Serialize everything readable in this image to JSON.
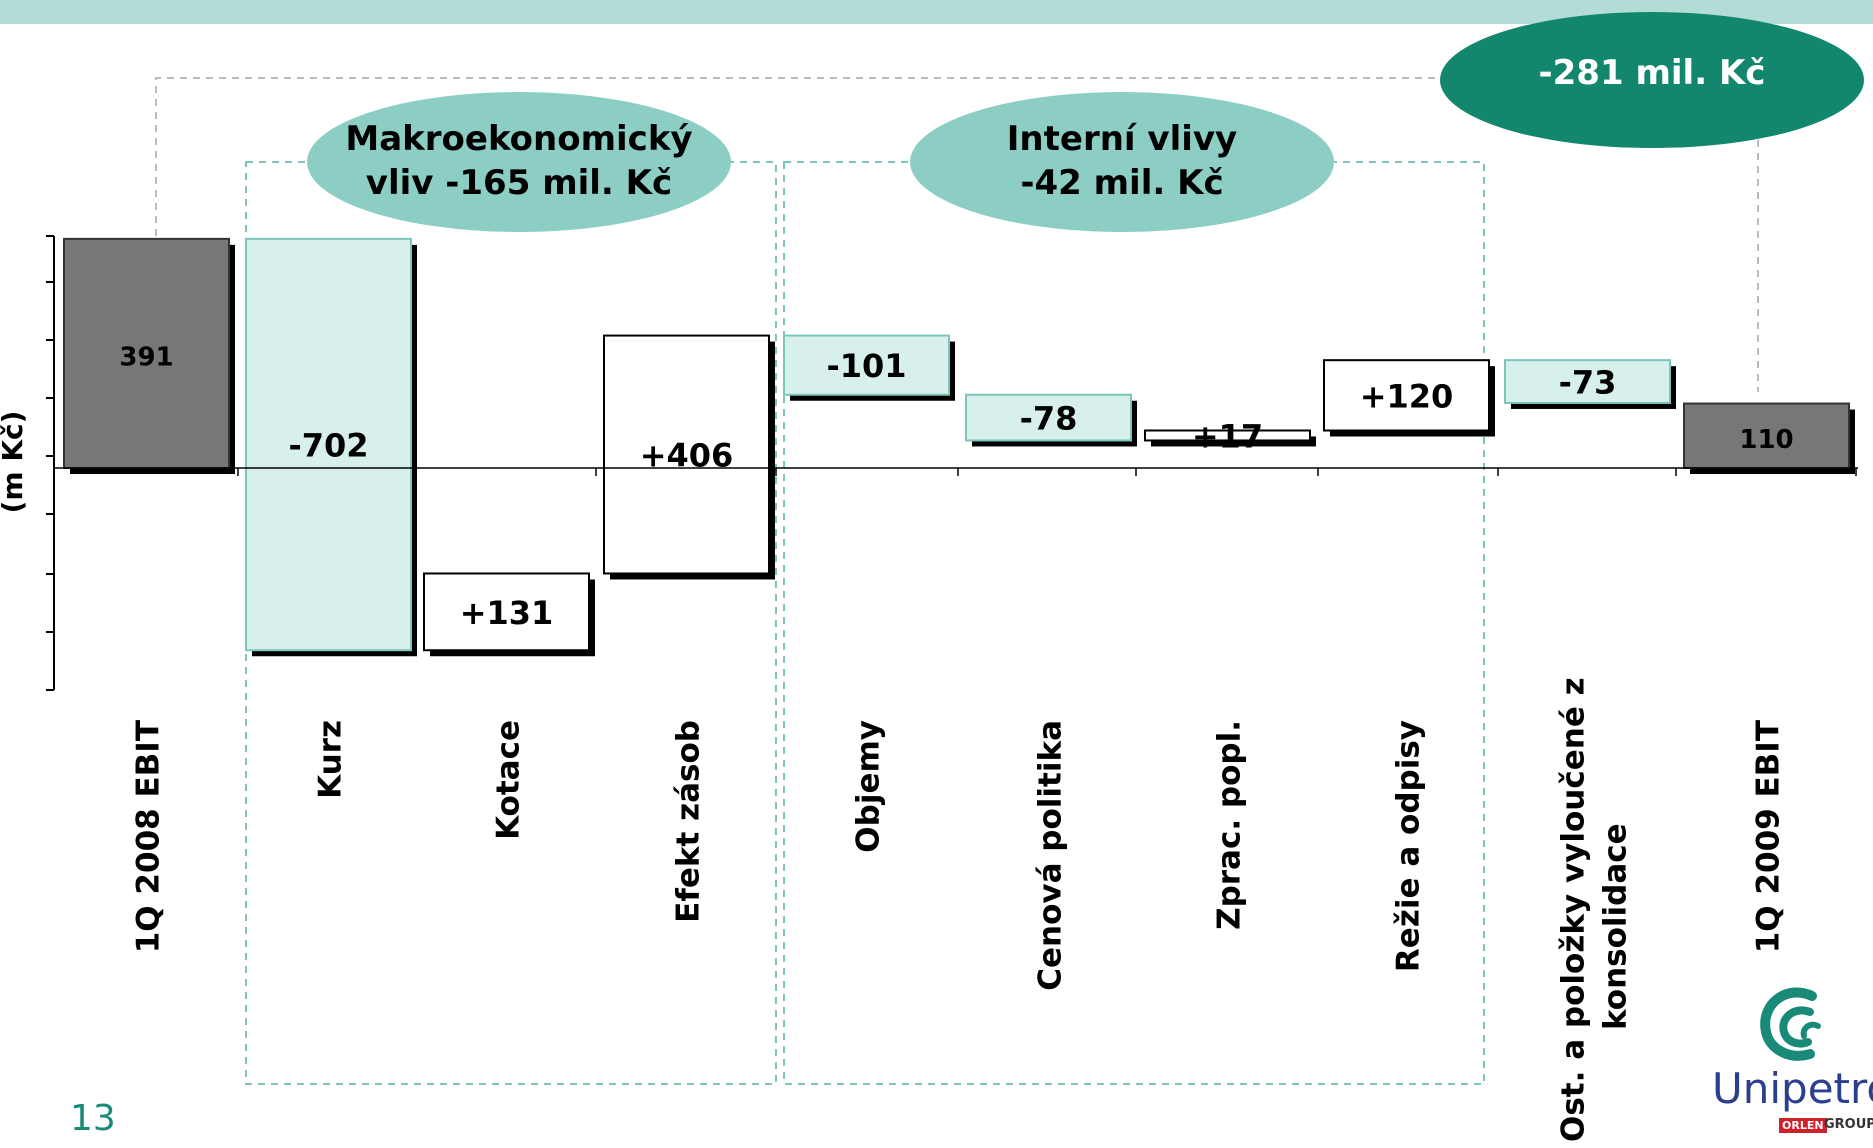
{
  "chart_data": {
    "type": "bar",
    "subtype": "waterfall",
    "ylabel": "(m Kč)",
    "categories": [
      "1Q 2008 EBIT",
      "Kurz",
      "Kotace",
      "Efekt zásob",
      "Objemy",
      "Cenová politika",
      "Zprac. popl.",
      "Režie a odpisy",
      "Ost. a položky vyloučené z konsolidace",
      "1Q 2009 EBIT"
    ],
    "values": [
      391,
      -702,
      131,
      406,
      -101,
      -78,
      17,
      120,
      -73,
      110
    ],
    "value_labels": [
      "391",
      "-702",
      "+131",
      "+406",
      "-101",
      "-78",
      "+17",
      "+120",
      "-73",
      "110"
    ],
    "kinds": [
      "total",
      "delta",
      "delta",
      "delta",
      "delta",
      "delta",
      "delta",
      "delta",
      "delta",
      "total"
    ],
    "groups": [
      {
        "label_line1": "Makroekonomický",
        "label_line2": "vliv -165 mil. Kč",
        "categories": [
          "Kurz",
          "Kotace",
          "Efekt zásob"
        ]
      },
      {
        "label_line1": "Interní vlivy",
        "label_line2": "-42 mil. Kč",
        "categories": [
          "Objemy",
          "Cenová politika",
          "Zprac. popl.",
          "Režie a odpisy"
        ]
      }
    ],
    "total_change": "-281 mil. Kč",
    "colors": {
      "total": "#777777",
      "negative": "#d8f0ec",
      "positive": "#ffffff",
      "group_ellipse": "#8ccec4",
      "total_ellipse": "#12876e",
      "accent": "#1a8a78"
    }
  },
  "slide_number": "13",
  "logo": {
    "name": "Unipetrol",
    "badge": "ORLEN",
    "suffix": "GROUP"
  }
}
